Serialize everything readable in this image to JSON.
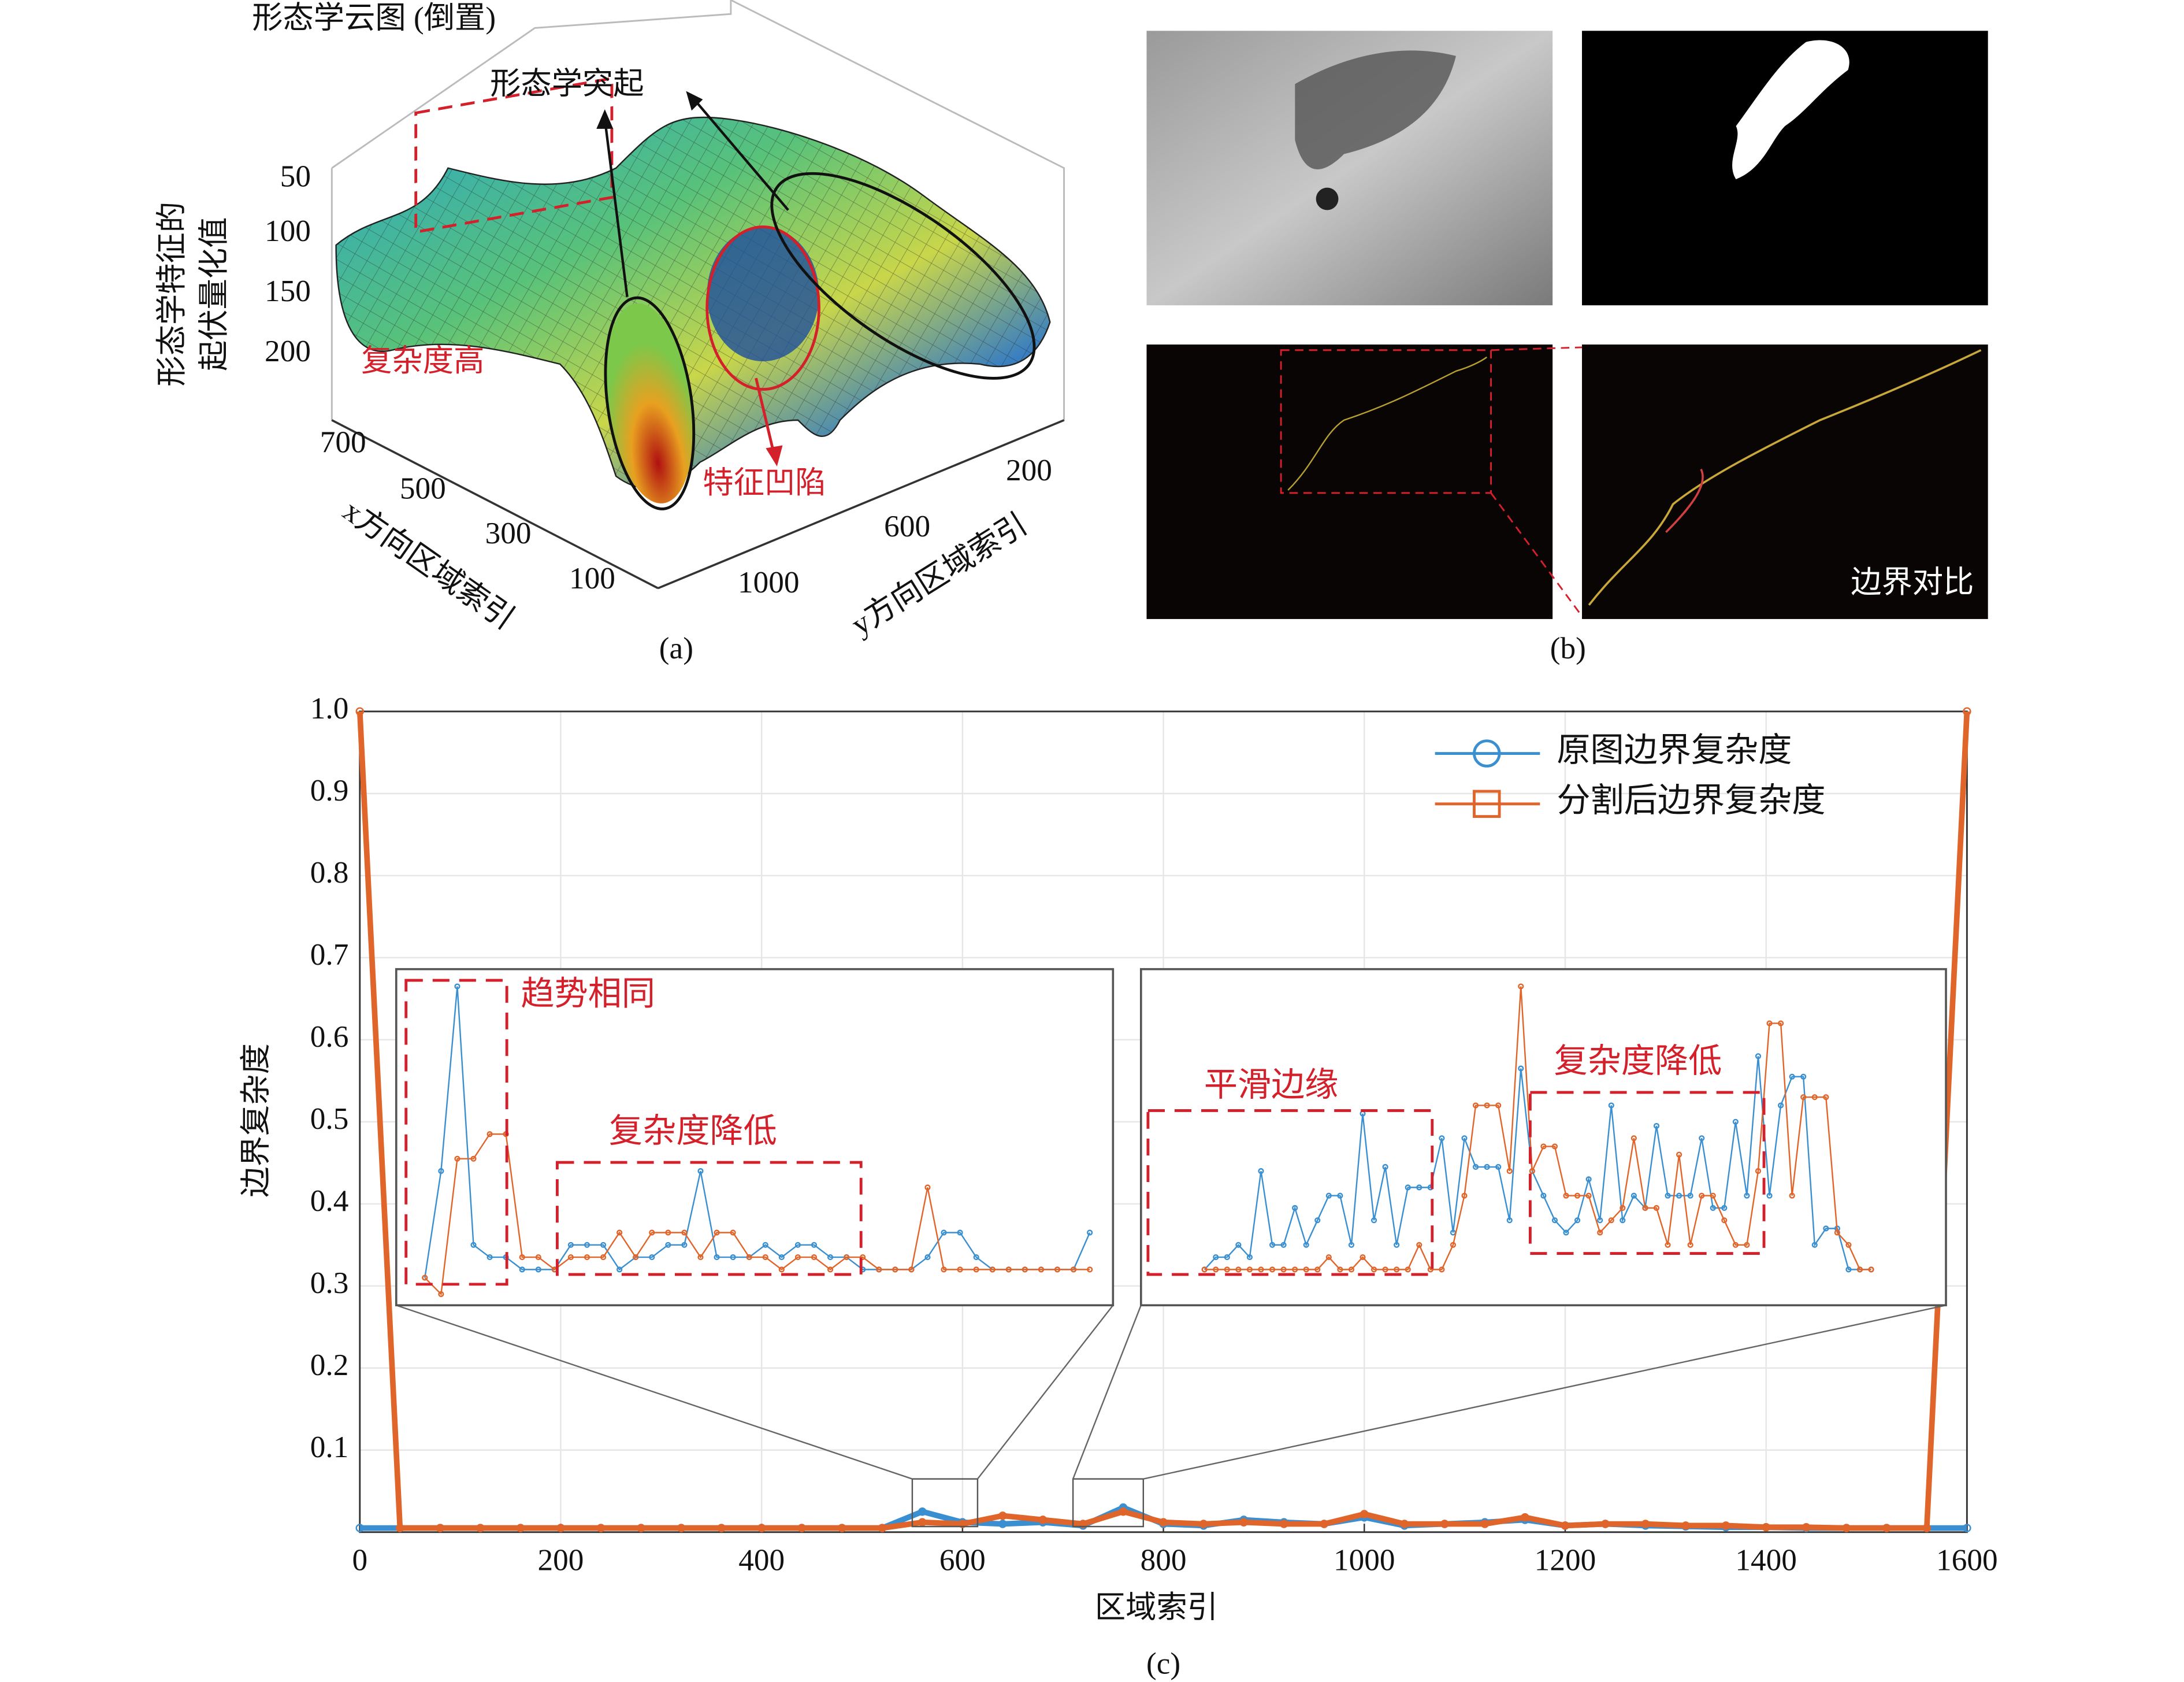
{
  "panel_a": {
    "title": "形态学云图 (倒置)",
    "annotations": [
      "形态学突起",
      "复杂度高",
      "特征凹陷"
    ],
    "zlabel": [
      "形态学特征的",
      "起伏量化值"
    ],
    "zticks": [
      50,
      100,
      150,
      200
    ],
    "xlabel": "x方向区域索引",
    "xticks": [
      700,
      500,
      300,
      100
    ],
    "ylabel": "y方向区域索引",
    "yticks": [
      200,
      600,
      1000
    ],
    "caption": "(a)"
  },
  "panel_b": {
    "label": "边界对比",
    "caption": "(b)"
  },
  "chart_data": [
    {
      "type": "line",
      "caption": "(c)",
      "xlabel": "区域索引",
      "ylabel": "边界复杂度",
      "xlim": [
        0,
        1600
      ],
      "ylim": [
        0,
        1
      ],
      "xticks": [
        0,
        200,
        400,
        600,
        800,
        1000,
        1200,
        1400,
        1600
      ],
      "yticks": [
        0.1,
        0.2,
        0.3,
        0.4,
        0.5,
        0.6,
        0.7,
        0.8,
        0.9,
        {
          "value": 1,
          "label": "1.0"
        }
      ],
      "grid": true,
      "legend": "upper right",
      "x": [
        0,
        40,
        80,
        120,
        160,
        200,
        240,
        280,
        320,
        360,
        400,
        440,
        480,
        520,
        560,
        600,
        640,
        680,
        720,
        760,
        800,
        840,
        880,
        920,
        960,
        1000,
        1040,
        1080,
        1120,
        1160,
        1200,
        1240,
        1280,
        1320,
        1360,
        1400,
        1440,
        1480,
        1520,
        1560,
        1600
      ],
      "series": [
        {
          "name": "原图边界复杂度",
          "color": "#3a8fd0",
          "marker": "circle",
          "values": [
            0.005,
            0.005,
            0.005,
            0.005,
            0.005,
            0.005,
            0.005,
            0.005,
            0.005,
            0.005,
            0.005,
            0.005,
            0.005,
            0.005,
            0.025,
            0.012,
            0.01,
            0.012,
            0.008,
            0.03,
            0.01,
            0.008,
            0.015,
            0.012,
            0.01,
            0.018,
            0.008,
            0.01,
            0.012,
            0.015,
            0.008,
            0.01,
            0.008,
            0.007,
            0.006,
            0.006,
            0.005,
            0.005,
            0.005,
            0.005,
            0.005
          ]
        },
        {
          "name": "分割后边界复杂度",
          "color": "#e0652a",
          "marker": "square",
          "values": [
            1,
            0.005,
            0.005,
            0.005,
            0.005,
            0.005,
            0.005,
            0.005,
            0.005,
            0.005,
            0.005,
            0.005,
            0.005,
            0.005,
            0.012,
            0.01,
            0.02,
            0.015,
            0.01,
            0.025,
            0.012,
            0.01,
            0.012,
            0.01,
            0.01,
            0.022,
            0.01,
            0.01,
            0.01,
            0.018,
            0.008,
            0.01,
            0.01,
            0.008,
            0.008,
            0.006,
            0.006,
            0.005,
            0.005,
            0.005,
            1
          ]
        }
      ]
    },
    {
      "type": "line",
      "xlim": [
        550,
        615
      ],
      "annotations": [
        "趋势相同",
        "复杂度降低"
      ],
      "x": [
        552,
        553.5,
        555,
        556.5,
        558,
        559.5,
        561,
        562.5,
        564,
        565.5,
        567,
        568.5,
        570,
        571.5,
        573,
        574.5,
        576,
        577.5,
        579,
        580.5,
        582,
        583.5,
        585,
        586.5,
        588,
        589.5,
        591,
        592.5,
        594,
        595.5,
        597,
        598.5,
        600,
        601.5,
        603,
        604.5,
        606,
        607.5,
        609,
        610.5,
        612,
        613.5
      ],
      "series": [
        {
          "color": "#3a8fd0",
          "values": [
            0.31,
            0.44,
            0.665,
            0.35,
            0.335,
            0.335,
            0.32,
            0.32,
            0.32,
            0.35,
            0.35,
            0.35,
            0.32,
            0.335,
            0.335,
            0.35,
            0.35,
            0.44,
            0.335,
            0.335,
            0.335,
            0.35,
            0.335,
            0.35,
            0.35,
            0.335,
            0.335,
            0.32,
            0.32,
            0.32,
            0.32,
            0.335,
            0.365,
            0.365,
            0.335,
            0.32,
            0.32,
            0.32,
            0.32,
            0.32,
            0.32,
            0.365
          ]
        },
        {
          "color": "#e0652a",
          "values": [
            0.31,
            0.29,
            0.455,
            0.455,
            0.485,
            0.485,
            0.335,
            0.335,
            0.32,
            0.335,
            0.335,
            0.335,
            0.365,
            0.335,
            0.365,
            0.365,
            0.365,
            0.335,
            0.365,
            0.365,
            0.335,
            0.335,
            0.32,
            0.335,
            0.335,
            0.32,
            0.335,
            0.335,
            0.32,
            0.32,
            0.32,
            0.42,
            0.32,
            0.32,
            0.32,
            0.32,
            0.32,
            0.32,
            0.32,
            0.32,
            0.32,
            0.32
          ]
        }
      ]
    },
    {
      "type": "line",
      "xlim": [
        710,
        780
      ],
      "annotations": [
        "平滑边缘",
        "复杂度降低"
      ],
      "x": [
        715,
        716,
        717,
        718,
        719,
        720,
        721,
        722,
        723,
        724,
        725,
        726,
        727,
        728,
        729,
        730,
        731,
        732,
        733,
        734,
        735,
        736,
        737,
        738,
        739,
        740,
        741,
        742,
        743,
        744,
        745,
        746,
        747,
        748,
        749,
        750,
        751,
        752,
        753,
        754,
        755,
        756,
        757,
        758,
        759,
        760,
        761,
        762,
        763,
        764,
        765,
        766,
        767,
        768,
        769,
        770,
        771,
        772,
        773,
        774
      ],
      "series": [
        {
          "color": "#3a8fd0",
          "values": [
            0.32,
            0.335,
            0.335,
            0.35,
            0.335,
            0.44,
            0.35,
            0.35,
            0.395,
            0.35,
            0.38,
            0.41,
            0.41,
            0.35,
            0.51,
            0.38,
            0.445,
            0.35,
            0.42,
            0.42,
            0.42,
            0.48,
            0.365,
            0.48,
            0.445,
            0.445,
            0.445,
            0.38,
            0.565,
            0.44,
            0.41,
            0.38,
            0.365,
            0.38,
            0.43,
            0.38,
            0.52,
            0.38,
            0.41,
            0.395,
            0.495,
            0.41,
            0.41,
            0.41,
            0.48,
            0.395,
            0.395,
            0.5,
            0.41,
            0.58,
            0.41,
            0.52,
            0.555,
            0.555,
            0.35,
            0.37,
            0.37,
            0.32,
            0.32,
            0.32
          ]
        },
        {
          "color": "#e0652a",
          "values": [
            0.32,
            0.32,
            0.32,
            0.32,
            0.32,
            0.32,
            0.32,
            0.32,
            0.32,
            0.32,
            0.32,
            0.335,
            0.32,
            0.32,
            0.335,
            0.32,
            0.32,
            0.32,
            0.32,
            0.35,
            0.32,
            0.32,
            0.35,
            0.41,
            0.52,
            0.52,
            0.52,
            0.44,
            0.665,
            0.44,
            0.47,
            0.47,
            0.41,
            0.41,
            0.41,
            0.365,
            0.38,
            0.395,
            0.48,
            0.395,
            0.395,
            0.35,
            0.46,
            0.35,
            0.41,
            0.41,
            0.38,
            0.35,
            0.35,
            0.44,
            0.62,
            0.62,
            0.41,
            0.53,
            0.53,
            0.53,
            0.365,
            0.35,
            0.32,
            0.32
          ]
        }
      ]
    }
  ]
}
